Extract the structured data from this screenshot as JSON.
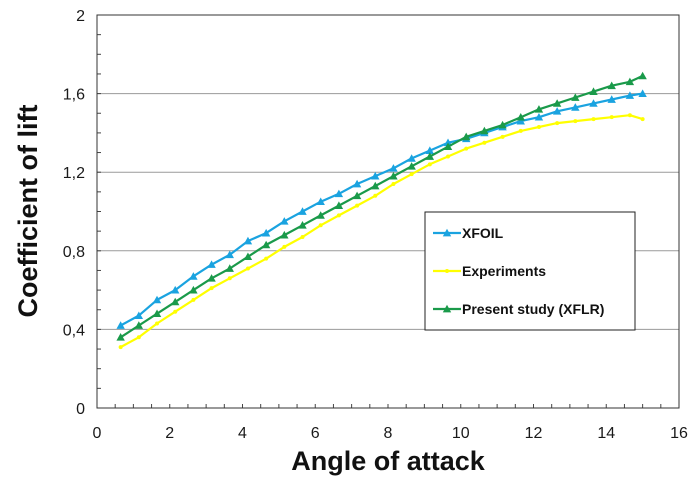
{
  "chart_data": {
    "type": "line",
    "title": "",
    "xlabel": "Angle of attack",
    "ylabel": "Coefficient of lift",
    "xlim": [
      0,
      16
    ],
    "ylim": [
      0,
      2
    ],
    "xticks": [
      0,
      2,
      4,
      6,
      8,
      10,
      12,
      14,
      16
    ],
    "yticks": [
      0,
      0.4,
      0.8,
      1.2,
      1.6,
      2
    ],
    "xtick_labels": [
      "0",
      "2",
      "4",
      "6",
      "8",
      "10",
      "12",
      "14",
      "16"
    ],
    "ytick_labels": [
      "0",
      "0,4",
      "0,8",
      "1,2",
      "1,6",
      "2"
    ],
    "grid": true,
    "legend_position": "center-right",
    "series": [
      {
        "name": "XFOIL",
        "color": "#1aa3e0",
        "marker": "triangle",
        "x": [
          0.65,
          1.15,
          1.65,
          2.15,
          2.65,
          3.15,
          3.65,
          4.15,
          4.65,
          5.15,
          5.65,
          6.15,
          6.65,
          7.15,
          7.65,
          8.15,
          8.65,
          9.15,
          9.65,
          10.15,
          10.65,
          11.15,
          11.65,
          12.15,
          12.65,
          13.15,
          13.65,
          14.15,
          14.65,
          15.0
        ],
        "y": [
          0.42,
          0.47,
          0.55,
          0.6,
          0.67,
          0.73,
          0.78,
          0.85,
          0.89,
          0.95,
          1.0,
          1.05,
          1.09,
          1.14,
          1.18,
          1.22,
          1.27,
          1.31,
          1.35,
          1.37,
          1.4,
          1.43,
          1.46,
          1.48,
          1.51,
          1.53,
          1.55,
          1.57,
          1.59,
          1.6
        ]
      },
      {
        "name": "Experiments",
        "color": "#ffff00",
        "marker": "dot",
        "x": [
          0.65,
          1.15,
          1.65,
          2.15,
          2.65,
          3.15,
          3.65,
          4.15,
          4.65,
          5.15,
          5.65,
          6.15,
          6.65,
          7.15,
          7.65,
          8.15,
          8.65,
          9.15,
          9.65,
          10.15,
          10.65,
          11.15,
          11.65,
          12.15,
          12.65,
          13.15,
          13.65,
          14.15,
          14.65,
          15.0
        ],
        "y": [
          0.31,
          0.36,
          0.43,
          0.49,
          0.55,
          0.61,
          0.66,
          0.71,
          0.76,
          0.82,
          0.87,
          0.93,
          0.98,
          1.03,
          1.08,
          1.14,
          1.19,
          1.24,
          1.28,
          1.32,
          1.35,
          1.38,
          1.41,
          1.43,
          1.45,
          1.46,
          1.47,
          1.48,
          1.49,
          1.47
        ]
      },
      {
        "name": "Present study (XFLR)",
        "color": "#1a9a4a",
        "marker": "triangle",
        "x": [
          0.65,
          1.15,
          1.65,
          2.15,
          2.65,
          3.15,
          3.65,
          4.15,
          4.65,
          5.15,
          5.65,
          6.15,
          6.65,
          7.15,
          7.65,
          8.15,
          8.65,
          9.15,
          9.65,
          10.15,
          10.65,
          11.15,
          11.65,
          12.15,
          12.65,
          13.15,
          13.65,
          14.15,
          14.65,
          15.0
        ],
        "y": [
          0.36,
          0.42,
          0.48,
          0.54,
          0.6,
          0.66,
          0.71,
          0.77,
          0.83,
          0.88,
          0.93,
          0.98,
          1.03,
          1.08,
          1.13,
          1.18,
          1.23,
          1.28,
          1.33,
          1.38,
          1.41,
          1.44,
          1.48,
          1.52,
          1.55,
          1.58,
          1.61,
          1.64,
          1.66,
          1.69
        ]
      }
    ]
  }
}
